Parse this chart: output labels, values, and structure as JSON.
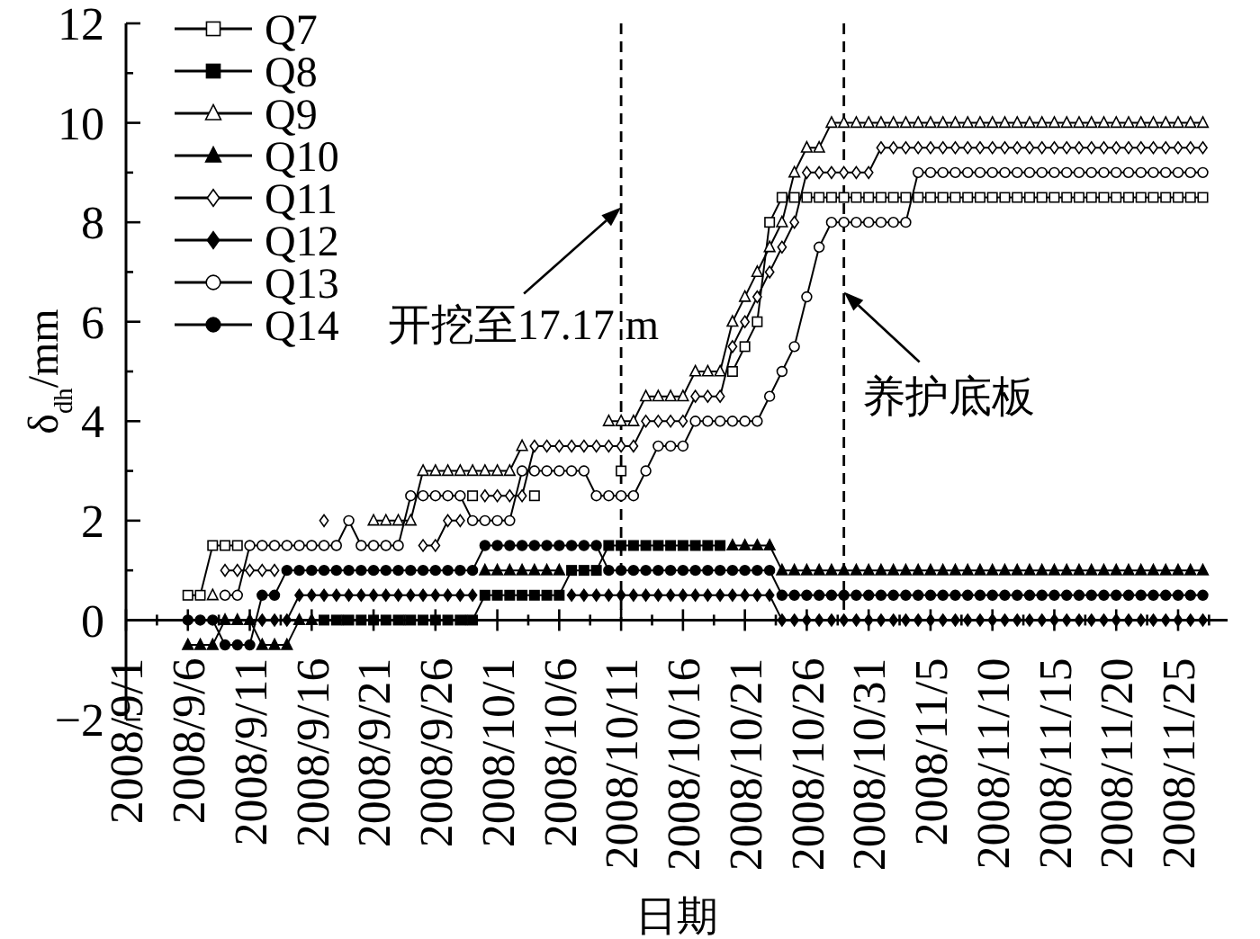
{
  "chart_data": {
    "type": "line",
    "xlabel": "日期",
    "ylabel": "δ$_{dh}$/mm",
    "legend": "top left",
    "x": [
      "2008-09-06",
      "2008-09-07",
      "2008-09-08",
      "2008-09-09",
      "2008-09-10",
      "2008-09-11",
      "2008-09-12",
      "2008-09-13",
      "2008-09-14",
      "2008-09-15",
      "2008-09-16",
      "2008-09-17",
      "2008-09-18",
      "2008-09-19",
      "2008-09-20",
      "2008-09-21",
      "2008-09-22",
      "2008-09-23",
      "2008-09-24",
      "2008-09-25",
      "2008-09-26",
      "2008-09-27",
      "2008-09-28",
      "2008-09-29",
      "2008-09-30",
      "2008-10-01",
      "2008-10-02",
      "2008-10-03",
      "2008-10-04",
      "2008-10-05",
      "2008-10-06",
      "2008-10-07",
      "2008-10-08",
      "2008-10-09",
      "2008-10-10",
      "2008-10-11",
      "2008-10-12",
      "2008-10-13",
      "2008-10-14",
      "2008-10-15",
      "2008-10-16",
      "2008-10-17",
      "2008-10-18",
      "2008-10-19",
      "2008-10-20",
      "2008-10-21",
      "2008-10-22",
      "2008-10-23",
      "2008-10-24",
      "2008-10-25",
      "2008-10-26",
      "2008-10-27",
      "2008-10-28",
      "2008-10-29",
      "2008-10-30",
      "2008-10-31",
      "2008-11-01",
      "2008-11-02",
      "2008-11-03",
      "2008-11-04",
      "2008-11-05",
      "2008-11-06",
      "2008-11-07",
      "2008-11-08",
      "2008-11-09",
      "2008-11-10",
      "2008-11-11",
      "2008-11-12",
      "2008-11-13",
      "2008-11-14",
      "2008-11-15",
      "2008-11-16",
      "2008-11-17",
      "2008-11-18",
      "2008-11-19",
      "2008-11-20",
      "2008-11-21",
      "2008-11-22",
      "2008-11-23",
      "2008-11-24",
      "2008-11-25",
      "2008-11-26",
      "2008-11-27"
    ],
    "xlim": [
      "2008-09-01",
      "2008-11-29"
    ],
    "xticks": [
      {
        "value": "2008-09-01",
        "label": "2008/9/1"
      },
      {
        "value": "2008-09-03T12:00",
        "label": null
      },
      {
        "value": "2008-09-06",
        "label": "2008/9/6"
      },
      {
        "value": "2008-09-08T12:00",
        "label": null
      },
      {
        "value": "2008-09-11",
        "label": "2008/9/11"
      },
      {
        "value": "2008-09-13T12:00",
        "label": null
      },
      {
        "value": "2008-09-16",
        "label": "2008/9/16"
      },
      {
        "value": "2008-09-18T12:00",
        "label": null
      },
      {
        "value": "2008-09-21",
        "label": "2008/9/21"
      },
      {
        "value": "2008-09-23T12:00",
        "label": null
      },
      {
        "value": "2008-09-26",
        "label": "2008/9/26"
      },
      {
        "value": "2008-09-28T12:00",
        "label": null
      },
      {
        "value": "2008-10-01",
        "label": "2008/10/1"
      },
      {
        "value": "2008-10-03T12:00",
        "label": null
      },
      {
        "value": "2008-10-06",
        "label": "2008/10/6"
      },
      {
        "value": "2008-10-08T12:00",
        "label": null
      },
      {
        "value": "2008-10-11",
        "label": "2008/10/11"
      },
      {
        "value": "2008-10-13T12:00",
        "label": null
      },
      {
        "value": "2008-10-16",
        "label": "2008/10/16"
      },
      {
        "value": "2008-10-18T12:00",
        "label": null
      },
      {
        "value": "2008-10-21",
        "label": "2008/10/21"
      },
      {
        "value": "2008-10-23T12:00",
        "label": null
      },
      {
        "value": "2008-10-26",
        "label": "2008/10/26"
      },
      {
        "value": "2008-10-28T12:00",
        "label": null
      },
      {
        "value": "2008-10-31",
        "label": "2008/10/31"
      },
      {
        "value": "2008-11-02T12:00",
        "label": null
      },
      {
        "value": "2008-11-05",
        "label": "2008/11/5"
      },
      {
        "value": "2008-11-07T12:00",
        "label": null
      },
      {
        "value": "2008-11-10",
        "label": "2008/11/10"
      },
      {
        "value": "2008-11-12T12:00",
        "label": null
      },
      {
        "value": "2008-11-15",
        "label": "2008/11/15"
      },
      {
        "value": "2008-11-17T12:00",
        "label": null
      },
      {
        "value": "2008-11-20",
        "label": "2008/11/20"
      },
      {
        "value": "2008-11-22T12:00",
        "label": null
      },
      {
        "value": "2008-11-25",
        "label": "2008/11/25"
      },
      {
        "value": "2008-11-27T12:00",
        "label": null
      }
    ],
    "ylim": [
      -2,
      12
    ],
    "yticks": [
      {
        "value": -2,
        "label": "−2"
      },
      {
        "value": -1,
        "label": null
      },
      0,
      {
        "value": 1,
        "label": null
      },
      2,
      {
        "value": 3,
        "label": null
      },
      4,
      {
        "value": 5,
        "label": null
      },
      6,
      {
        "value": 7,
        "label": null
      },
      8,
      {
        "value": 9,
        "label": null
      },
      10,
      {
        "value": 11,
        "label": null
      },
      12
    ],
    "series": [
      {
        "name": "Q7",
        "color": "#000000",
        "marker": "square",
        "values": [
          0.5,
          0.5,
          1.5,
          1.5,
          1.5,
          null,
          null,
          null,
          null,
          null,
          null,
          null,
          null,
          null,
          null,
          null,
          null,
          null,
          null,
          null,
          null,
          null,
          null,
          2.5,
          null,
          null,
          null,
          null,
          2.5,
          null,
          null,
          null,
          null,
          null,
          null,
          3,
          null,
          null,
          null,
          null,
          null,
          null,
          null,
          null,
          5,
          5.5,
          6,
          8,
          8.5,
          8.5,
          8.5,
          8.5,
          8.5,
          8.5,
          8.5,
          8.5,
          8.5,
          8.5,
          8.5,
          8.5,
          8.5,
          8.5,
          8.5,
          8.5,
          8.5,
          8.5,
          8.5,
          8.5,
          8.5,
          8.5,
          8.5,
          8.5,
          8.5,
          8.5,
          8.5,
          8.5,
          8.5,
          8.5,
          8.5,
          8.5,
          8.5,
          8.5,
          8.5
        ]
      },
      {
        "name": "Q8",
        "color": "#000000",
        "marker": "square",
        "values": [
          null,
          null,
          null,
          null,
          null,
          null,
          null,
          null,
          null,
          null,
          null,
          0,
          0,
          0,
          0,
          0,
          0,
          0,
          0,
          0,
          0,
          0,
          0,
          0,
          0.5,
          0.5,
          0.5,
          0.5,
          0.5,
          0.5,
          0.5,
          1,
          1,
          1,
          1.5,
          1.5,
          1.5,
          1.5,
          1.5,
          1.5,
          1.5,
          1.5,
          1.5,
          1.5,
          null,
          null,
          null,
          null,
          null,
          null,
          null,
          null,
          null,
          null,
          null,
          null,
          null,
          null,
          null,
          null,
          null,
          null,
          null,
          null,
          null,
          null,
          null,
          null,
          null,
          null,
          null,
          null,
          null,
          null,
          null,
          null,
          null,
          null,
          null,
          null,
          null,
          null,
          null
        ]
      },
      {
        "name": "Q9",
        "color": "#000000",
        "marker": "triangle",
        "values": [
          null,
          null,
          0.5,
          null,
          null,
          null,
          null,
          null,
          null,
          null,
          null,
          null,
          null,
          null,
          null,
          2,
          2,
          2,
          2,
          3,
          3,
          3,
          3,
          3,
          3,
          3,
          3,
          3.5,
          null,
          null,
          null,
          null,
          null,
          null,
          4,
          4,
          4,
          4.5,
          4.5,
          4.5,
          4.5,
          5,
          5,
          5,
          6,
          6.5,
          7,
          7.5,
          8,
          9,
          9.5,
          9.5,
          10,
          10,
          10,
          10,
          10,
          10,
          10,
          10,
          10,
          10,
          10,
          10,
          10,
          10,
          10,
          10,
          10,
          10,
          10,
          10,
          10,
          10,
          10,
          10,
          10,
          10,
          10,
          10,
          10,
          10,
          10
        ]
      },
      {
        "name": "Q10",
        "color": "#000000",
        "marker": "triangle",
        "values": [
          -0.5,
          -0.5,
          -0.5,
          0,
          0,
          0,
          -0.5,
          -0.5,
          -0.5,
          0,
          0,
          null,
          null,
          null,
          null,
          null,
          null,
          null,
          null,
          null,
          null,
          null,
          null,
          null,
          1,
          1,
          1,
          1,
          1,
          1,
          1,
          null,
          null,
          null,
          null,
          null,
          null,
          null,
          null,
          null,
          null,
          null,
          null,
          null,
          1.5,
          1.5,
          1.5,
          1.5,
          1,
          1,
          1,
          1,
          1,
          1,
          1,
          1,
          1,
          1,
          1,
          1,
          1,
          1,
          1,
          1,
          1,
          1,
          1,
          1,
          1,
          1,
          1,
          1,
          1,
          1,
          1,
          1,
          1,
          1,
          1,
          1,
          1,
          1,
          1
        ]
      },
      {
        "name": "Q11",
        "color": "#000000",
        "marker": "diamond",
        "values": [
          null,
          null,
          null,
          1,
          1,
          1,
          1,
          1,
          null,
          null,
          null,
          2,
          null,
          null,
          null,
          null,
          null,
          null,
          null,
          1.5,
          1.5,
          2,
          2,
          null,
          2.5,
          2.5,
          2.5,
          2.5,
          3.5,
          3.5,
          3.5,
          3.5,
          3.5,
          3.5,
          3.5,
          3.5,
          3.5,
          4,
          4,
          4,
          4,
          4.5,
          4.5,
          4.5,
          5.5,
          6,
          6.5,
          7,
          7.5,
          8,
          9,
          9,
          9,
          9,
          9,
          9,
          9.5,
          9.5,
          9.5,
          9.5,
          9.5,
          9.5,
          9.5,
          9.5,
          9.5,
          9.5,
          9.5,
          9.5,
          9.5,
          9.5,
          9.5,
          9.5,
          9.5,
          9.5,
          9.5,
          9.5,
          9.5,
          9.5,
          9.5,
          9.5,
          9.5,
          9.5,
          9.5
        ]
      },
      {
        "name": "Q12",
        "color": "#000000",
        "marker": "diamond",
        "values": [
          null,
          null,
          null,
          null,
          null,
          null,
          0,
          0,
          0,
          0.5,
          0.5,
          0.5,
          0.5,
          0.5,
          0.5,
          0.5,
          0.5,
          0.5,
          0.5,
          0.5,
          0.5,
          0.5,
          0.5,
          0.5,
          null,
          null,
          null,
          null,
          null,
          null,
          null,
          0.5,
          0.5,
          0.5,
          0.5,
          0.5,
          0.5,
          0.5,
          0.5,
          0.5,
          0.5,
          0.5,
          0.5,
          0.5,
          0.5,
          0.5,
          0.5,
          0.5,
          0,
          0,
          0,
          0,
          0,
          0,
          0,
          0,
          0,
          0,
          0,
          0,
          0,
          0,
          0,
          0,
          0,
          0,
          0,
          0,
          0,
          0,
          0,
          0,
          0,
          0,
          0,
          0,
          0,
          0,
          0,
          0,
          0,
          0,
          0
        ]
      },
      {
        "name": "Q13",
        "color": "#000000",
        "marker": "circle",
        "values": [
          null,
          null,
          null,
          0.5,
          0.5,
          1.5,
          1.5,
          1.5,
          1.5,
          1.5,
          1.5,
          1.5,
          1.5,
          2,
          1.5,
          1.5,
          1.5,
          1.5,
          2.5,
          2.5,
          2.5,
          2.5,
          2.5,
          2,
          2,
          2,
          2,
          3,
          3,
          3,
          3,
          3,
          3,
          2.5,
          2.5,
          2.5,
          2.5,
          3,
          3.5,
          3.5,
          3.5,
          4,
          4,
          4,
          4,
          4,
          4,
          4.5,
          5,
          5.5,
          6.5,
          7.5,
          8,
          8,
          8,
          8,
          8,
          8,
          8,
          9,
          9,
          9,
          9,
          9,
          9,
          9,
          9,
          9,
          9,
          9,
          9,
          9,
          9,
          9,
          9,
          9,
          9,
          9,
          9,
          9,
          9,
          9,
          9
        ]
      },
      {
        "name": "Q14",
        "color": "#000000",
        "marker": "circle",
        "values": [
          0,
          0,
          0,
          -0.5,
          -0.5,
          -0.5,
          0.5,
          0.5,
          1,
          1,
          1,
          1,
          1,
          1,
          1,
          1,
          1,
          1,
          1,
          1,
          1,
          1,
          1,
          1,
          1.5,
          1.5,
          1.5,
          1.5,
          1.5,
          1.5,
          1.5,
          1.5,
          1.5,
          1.5,
          1,
          1,
          1,
          1,
          1,
          1,
          1,
          1,
          1,
          1,
          1,
          1,
          1,
          1,
          0.5,
          0.5,
          0.5,
          0.5,
          0.5,
          0.5,
          0.5,
          0.5,
          0.5,
          0.5,
          0.5,
          0.5,
          0.5,
          0.5,
          0.5,
          0.5,
          0.5,
          0.5,
          0.5,
          0.5,
          0.5,
          0.5,
          0.5,
          0.5,
          0.5,
          0.5,
          0.5,
          0.5,
          0.5,
          0.5,
          0.5,
          0.5,
          0.5,
          0.5,
          0.5
        ]
      }
    ],
    "ref_lines": [
      {
        "axis": "x",
        "value": "2008-10-11",
        "color": "#000000",
        "line_style": "dashed"
      },
      {
        "axis": "x",
        "value": "2008-10-29",
        "color": "#000000",
        "line_style": "dashed"
      }
    ],
    "annotations": [
      {
        "text": "开挖至17.17 m",
        "x": "2008-10-11",
        "y": 8.3
      },
      {
        "text": "养护底板",
        "x": "2008-10-29",
        "y": 6.6
      }
    ]
  }
}
